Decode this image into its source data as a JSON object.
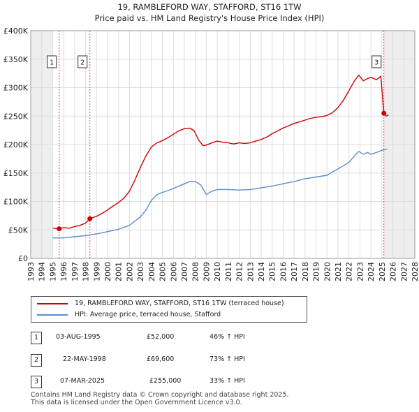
{
  "chart_data": {
    "type": "line",
    "title": "19, RAMBLEFORD WAY, STAFFORD, ST16 1TW",
    "subtitle": "Price paid vs. HM Land Registry's House Price Index (HPI)",
    "xlim": [
      1993,
      2028
    ],
    "ylim": [
      0,
      400000
    ],
    "x_ticks": [
      "1993",
      "1994",
      "1995",
      "1996",
      "1997",
      "1998",
      "1999",
      "2000",
      "2001",
      "2002",
      "2003",
      "2004",
      "2005",
      "2006",
      "2007",
      "2008",
      "2009",
      "2010",
      "2011",
      "2012",
      "2013",
      "2014",
      "2015",
      "2016",
      "2017",
      "2018",
      "2019",
      "2020",
      "2021",
      "2022",
      "2023",
      "2024",
      "2025",
      "2026",
      "2027",
      "2028"
    ],
    "y_ticks": [
      {
        "value": 0,
        "label": "£0"
      },
      {
        "value": 50000,
        "label": "£50K"
      },
      {
        "value": 100000,
        "label": "£100K"
      },
      {
        "value": 150000,
        "label": "£150K"
      },
      {
        "value": 200000,
        "label": "£200K"
      },
      {
        "value": 250000,
        "label": "£250K"
      },
      {
        "value": 300000,
        "label": "£300K"
      },
      {
        "value": 350000,
        "label": "£350K"
      },
      {
        "value": 400000,
        "label": "£400K"
      }
    ],
    "grid": true,
    "data_range_start": 1995.0,
    "series": [
      {
        "name": "19, RAMBLEFORD WAY, STAFFORD, ST16 1TW (terraced house)",
        "color": "#cc0000",
        "x": [
          1995.0,
          1995.59,
          1996.0,
          1996.5,
          1997.0,
          1997.5,
          1998.0,
          1998.38,
          1998.5,
          1999.0,
          1999.5,
          2000.0,
          2000.5,
          2001.0,
          2001.5,
          2002.0,
          2002.5,
          2003.0,
          2003.5,
          2004.0,
          2004.5,
          2005.0,
          2005.5,
          2006.0,
          2006.5,
          2007.0,
          2007.5,
          2007.9,
          2008.3,
          2008.7,
          2009.0,
          2009.5,
          2010.0,
          2010.5,
          2011.0,
          2011.5,
          2012.0,
          2012.5,
          2013.0,
          2013.5,
          2014.0,
          2014.5,
          2015.0,
          2015.5,
          2016.0,
          2016.5,
          2017.0,
          2017.5,
          2018.0,
          2018.5,
          2019.0,
          2019.5,
          2020.0,
          2020.5,
          2021.0,
          2021.5,
          2022.0,
          2022.5,
          2022.9,
          2023.3,
          2023.7,
          2024.0,
          2024.5,
          2024.9,
          2025.18,
          2025.4,
          2025.6
        ],
        "y": [
          53000,
          52000,
          54000,
          53000,
          56000,
          58000,
          62000,
          69600,
          70500,
          74000,
          79000,
          85000,
          92000,
          98000,
          106000,
          118000,
          138000,
          160000,
          180000,
          196000,
          203000,
          207000,
          212000,
          218000,
          224000,
          228000,
          229000,
          224000,
          208000,
          198000,
          199000,
          203000,
          206000,
          204000,
          203000,
          201000,
          203000,
          202000,
          203000,
          206000,
          209000,
          213000,
          219000,
          224000,
          229000,
          233000,
          237000,
          240000,
          243000,
          246000,
          248000,
          249000,
          251000,
          256000,
          265000,
          278000,
          295000,
          312000,
          322000,
          312000,
          316000,
          318000,
          314000,
          320000,
          255000,
          250000,
          252000
        ]
      },
      {
        "name": "HPI: Average price, terraced house, Stafford",
        "color": "#5b8ccc",
        "x": [
          1995.0,
          1996.0,
          1997.0,
          1998.0,
          1999.0,
          2000.0,
          2001.0,
          2002.0,
          2003.0,
          2003.5,
          2004.0,
          2004.5,
          2005.0,
          2005.5,
          2006.0,
          2006.5,
          2007.0,
          2007.5,
          2008.0,
          2008.5,
          2009.0,
          2009.5,
          2010.0,
          2011.0,
          2012.0,
          2013.0,
          2014.0,
          2015.0,
          2016.0,
          2017.0,
          2018.0,
          2019.0,
          2020.0,
          2020.5,
          2021.0,
          2021.5,
          2022.0,
          2022.5,
          2022.9,
          2023.3,
          2023.7,
          2024.0,
          2024.5,
          2025.0,
          2025.5
        ],
        "y": [
          36000,
          36000,
          38000,
          40000,
          43000,
          47000,
          51000,
          58000,
          73000,
          85000,
          102000,
          112000,
          116000,
          119000,
          123000,
          127000,
          131000,
          135000,
          135000,
          129000,
          112000,
          118000,
          121000,
          121000,
          120000,
          121000,
          124000,
          127000,
          131000,
          135000,
          140000,
          143000,
          146000,
          152000,
          157000,
          163000,
          169000,
          180000,
          188000,
          183000,
          186000,
          183000,
          186000,
          190000,
          192000
        ]
      }
    ],
    "sales": [
      {
        "label": "1",
        "x": 1995.59,
        "price": 52000
      },
      {
        "label": "2",
        "x": 1998.39,
        "price": 69600
      },
      {
        "label": "3",
        "x": 2025.18,
        "price": 255000
      }
    ]
  },
  "legend": {
    "items": [
      {
        "label": "19, RAMBLEFORD WAY, STAFFORD, ST16 1TW (terraced house)",
        "color": "#cc0000"
      },
      {
        "label": "HPI: Average price, terraced house, Stafford",
        "color": "#5b8ccc"
      }
    ]
  },
  "sales_table": [
    {
      "num": "1",
      "date": "03-AUG-1995",
      "price": "£52,000",
      "hpi": "46% ↑ HPI"
    },
    {
      "num": "2",
      "date": "22-MAY-1998",
      "price": "£69,600",
      "hpi": "73% ↑ HPI"
    },
    {
      "num": "3",
      "date": "07-MAR-2025",
      "price": "£255,000",
      "hpi": "33% ↑ HPI"
    }
  ],
  "footer": {
    "line1": "Contains HM Land Registry data © Crown copyright and database right 2025.",
    "line2": "This data is licensed under the Open Government Licence v3.0."
  }
}
